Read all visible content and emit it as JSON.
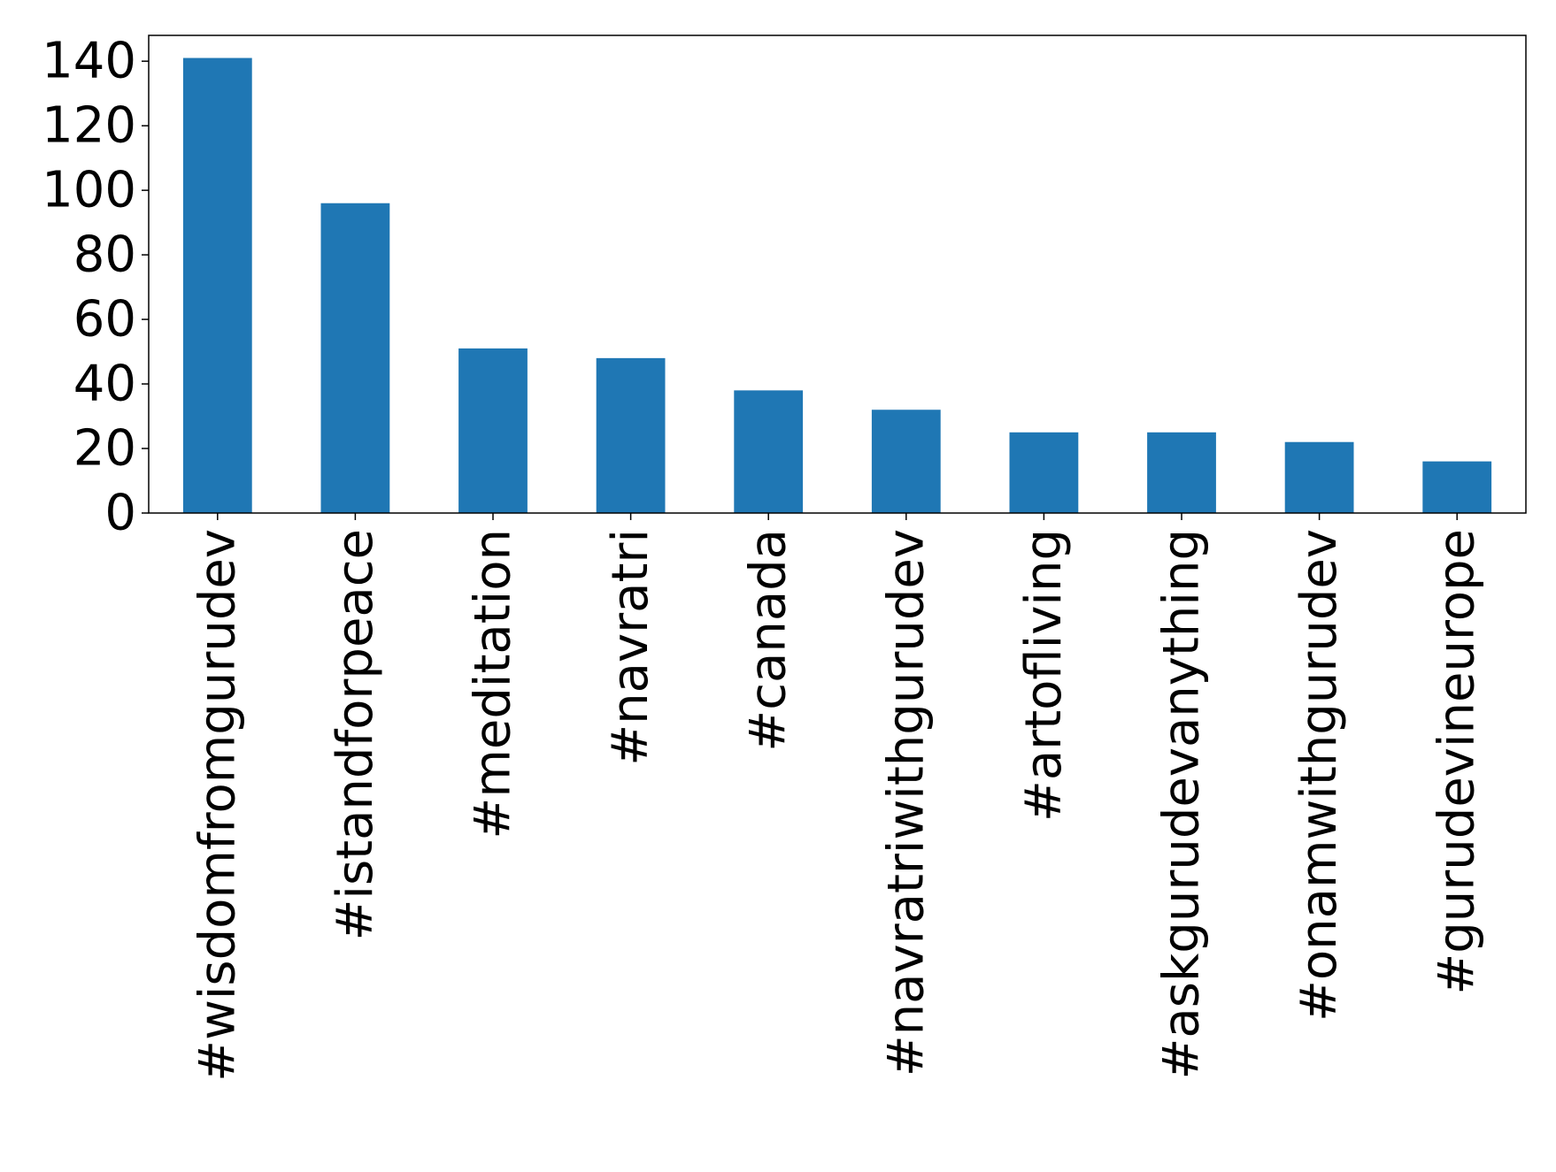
{
  "chart_data": {
    "type": "bar",
    "title": "",
    "xlabel": "",
    "ylabel": "",
    "categories": [
      "#wisdomfromgurudev",
      "#istandforpeace",
      "#meditation",
      "#navratri",
      "#canada",
      "#navratriwithgurudev",
      "#artofliving",
      "#askgurudevanything",
      "#onamwithgurudev",
      "#gurudevineurope"
    ],
    "values": [
      141,
      96,
      51,
      48,
      38,
      32,
      25,
      25,
      22,
      16
    ],
    "ylim": [
      0,
      148
    ],
    "yticks": [
      0,
      20,
      40,
      60,
      80,
      100,
      120,
      140
    ],
    "grid": false,
    "legend": "none",
    "colors": {
      "bar": "#1f77b4",
      "axes": "#000000",
      "background": "#ffffff"
    }
  }
}
